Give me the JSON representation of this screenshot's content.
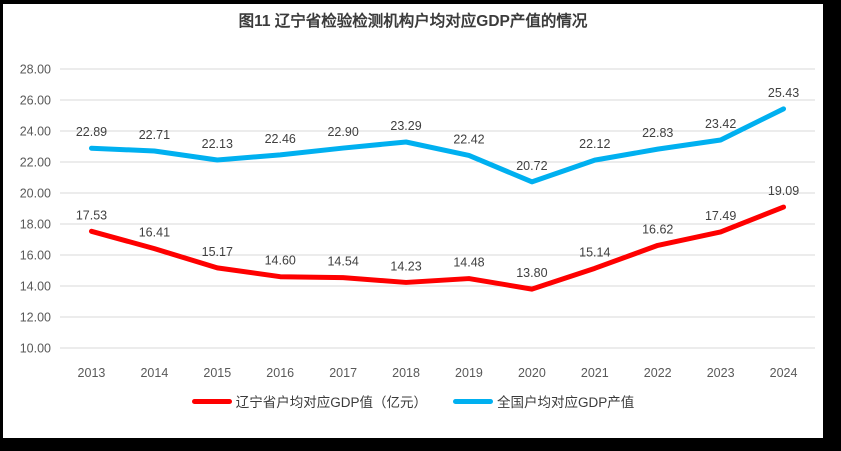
{
  "title": "图11 辽宁省检验检测机构户均对应GDP产值的情况",
  "colors": {
    "liaoning_line": "#fe0000",
    "national_line": "#00b0f0",
    "gridline": "#d9d9d9",
    "axis_text": "#595959",
    "data_label": "#404040",
    "frame": "#000000",
    "background": "#ffffff"
  },
  "chart_data": {
    "type": "line",
    "title": "图11 辽宁省检验检测机构户均对应GDP产值的情况",
    "categories": [
      "2013",
      "2014",
      "2015",
      "2016",
      "2017",
      "2018",
      "2019",
      "2020",
      "2021",
      "2022",
      "2023",
      "2024"
    ],
    "series": [
      {
        "name": "辽宁省户均对应GDP值（亿元）",
        "color": "#fe0000",
        "values": [
          17.53,
          16.41,
          15.17,
          14.6,
          14.54,
          14.23,
          14.48,
          13.8,
          15.14,
          16.62,
          17.49,
          19.09
        ]
      },
      {
        "name": "全国户均对应GDP产值",
        "color": "#00b0f0",
        "values": [
          22.89,
          22.71,
          22.13,
          22.46,
          22.9,
          23.29,
          22.42,
          20.72,
          22.12,
          22.83,
          23.42,
          25.43
        ]
      }
    ],
    "xlabel": "",
    "ylabel": "",
    "ylim": [
      10,
      28
    ],
    "ytick_step": 2,
    "ytick_labels": [
      "10.00",
      "12.00",
      "14.00",
      "16.00",
      "18.00",
      "20.00",
      "22.00",
      "24.00",
      "26.00",
      "28.00"
    ],
    "grid": true,
    "data_labels": true,
    "data_label_decimals": 2,
    "legend_position": "bottom"
  }
}
